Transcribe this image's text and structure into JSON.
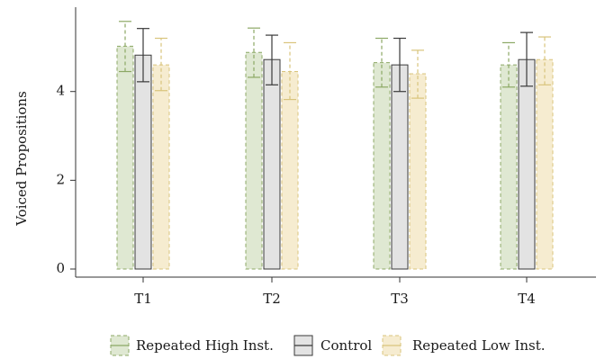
{
  "chart_data": {
    "type": "bar",
    "categories": [
      "T1",
      "T2",
      "T3",
      "T4"
    ],
    "ylabel": "Voiced Propositions",
    "xlabel": "",
    "ylim": [
      0,
      5.9
    ],
    "yticks": [
      0,
      2,
      4
    ],
    "grid": false,
    "legend_position": "bottom",
    "error_bars": true,
    "series": [
      {
        "name": "Repeated High Inst.",
        "values": [
          5.02,
          4.88,
          4.65,
          4.6
        ],
        "error_low": [
          4.45,
          4.32,
          4.1,
          4.1
        ],
        "error_high": [
          5.58,
          5.43,
          5.2,
          5.1
        ],
        "fill": "#dfe8d2",
        "stroke": "#8ca865",
        "dashed": true
      },
      {
        "name": "Control",
        "values": [
          4.82,
          4.72,
          4.6,
          4.72
        ],
        "error_low": [
          4.22,
          4.15,
          4.0,
          4.12
        ],
        "error_high": [
          5.42,
          5.27,
          5.2,
          5.33
        ],
        "fill": "#e3e3e3",
        "stroke": "#3a3a3a",
        "dashed": false
      },
      {
        "name": "Repeated Low Inst.",
        "values": [
          4.6,
          4.45,
          4.4,
          4.72
        ],
        "error_low": [
          4.02,
          3.82,
          3.85,
          4.15
        ],
        "error_high": [
          5.2,
          5.1,
          4.93,
          5.23
        ],
        "fill": "#f6ecd0",
        "stroke": "#d9c47c",
        "dashed": true
      }
    ]
  }
}
